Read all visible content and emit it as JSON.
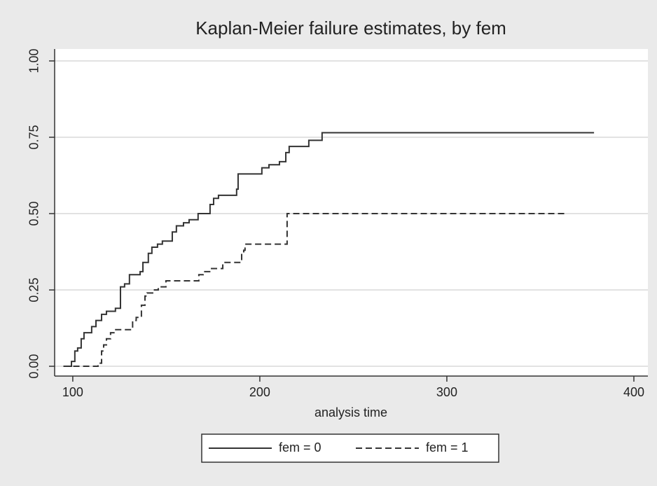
{
  "chart_data": {
    "type": "line",
    "drawstyle": "steps-post",
    "title": "Kaplan-Meier failure estimates, by fem",
    "xlabel": "analysis time",
    "xlim": [
      90.3,
      407.5
    ],
    "ylim": [
      -0.032,
      1.039
    ],
    "xticks": [
      100,
      200,
      300,
      400
    ],
    "yticks": [
      {
        "value": 0,
        "label": "0.00"
      },
      {
        "value": 0.25,
        "label": "0.25"
      },
      {
        "value": 0.5,
        "label": "0.50"
      },
      {
        "value": 0.75,
        "label": "0.75"
      },
      {
        "value": 1,
        "label": "1.00"
      }
    ],
    "grid": true,
    "legend": "bottom",
    "series": [
      {
        "name": "fem = 0",
        "color": "#333333",
        "linestyle": "solid",
        "x": [
          95,
          99.3,
          101.1,
          102.6,
          104.5,
          106,
          110.1,
          112.4,
          115.4,
          118,
          122.8,
          125.5,
          127.7,
          130.3,
          136,
          137.5,
          140.4,
          142.3,
          145.3,
          147.9,
          153.2,
          155.4,
          159.2,
          162.2,
          167,
          173.4,
          175.3,
          177.9,
          187.6,
          188.4,
          201.1,
          204.9,
          210.5,
          213.9,
          215.7,
          226.2,
          233.3,
          378.7
        ],
        "values": [
          0,
          0.016,
          0.05,
          0.06,
          0.09,
          0.11,
          0.13,
          0.15,
          0.17,
          0.18,
          0.19,
          0.26,
          0.27,
          0.3,
          0.31,
          0.34,
          0.37,
          0.39,
          0.4,
          0.41,
          0.44,
          0.46,
          0.47,
          0.48,
          0.5,
          0.53,
          0.55,
          0.56,
          0.58,
          0.63,
          0.65,
          0.66,
          0.67,
          0.7,
          0.72,
          0.74,
          0.765,
          0.765
        ]
      },
      {
        "name": "fem = 1",
        "color": "#333333",
        "linestyle": "dashed",
        "x": [
          95,
          113.5,
          115.4,
          116.5,
          118,
          120.2,
          122,
          132,
          133.9,
          136.7,
          138.6,
          139.7,
          142.7,
          145.7,
          149.8,
          167.4,
          169.7,
          174.2,
          180.2,
          190.3,
          191.4,
          192.1,
          214.6,
          364.4
        ],
        "values": [
          0,
          0.01,
          0.05,
          0.07,
          0.09,
          0.11,
          0.12,
          0.15,
          0.16,
          0.2,
          0.23,
          0.24,
          0.25,
          0.26,
          0.28,
          0.3,
          0.31,
          0.32,
          0.34,
          0.37,
          0.38,
          0.4,
          0.5,
          0.5
        ]
      }
    ]
  }
}
